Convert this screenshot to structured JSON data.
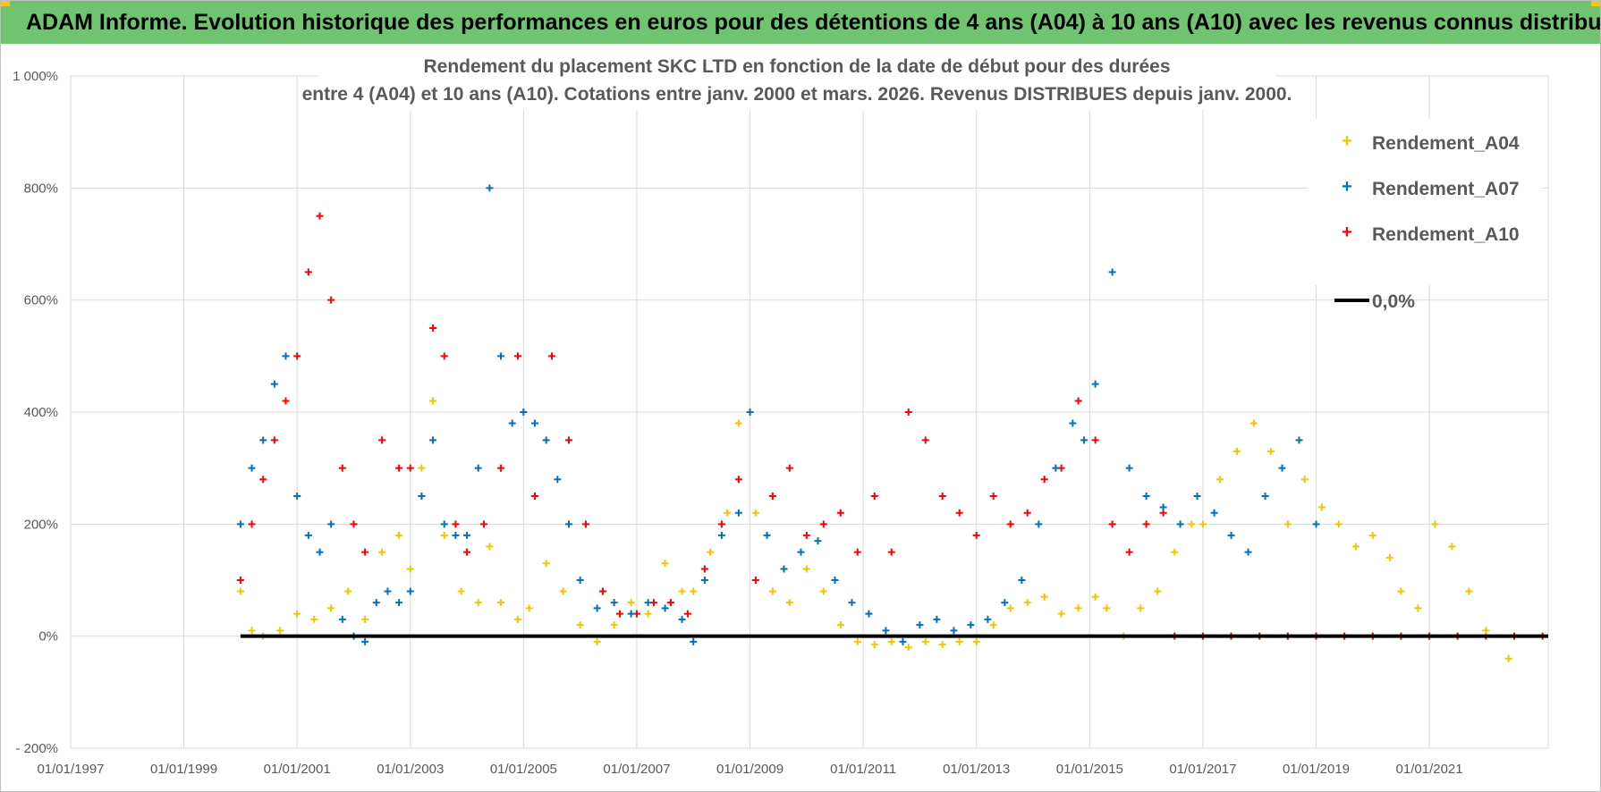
{
  "banner": {
    "title": "ADAM Informe. Evolution historique des performances en euros pour des détentions de 4 ans (A04) à 10 ans (A10) avec les revenus connus distribués"
  },
  "colors": {
    "banner_bg": "#70c46f",
    "a04": "#f5c400",
    "a07": "#0070c0",
    "a10": "#ff0000",
    "zero": "#000000",
    "grid": "#d9d9d9",
    "text": "#595959"
  },
  "chart_data": {
    "type": "scatter",
    "title_line1": "Rendement du placement SKC LTD en fonction de la date de début pour des durées",
    "title_line2": "entre 4 (A04) et 10 ans (A10).  Cotations entre janv. 2000 et mars. 2026.  Revenus DISTRIBUES depuis janv. 2000.",
    "xlim": [
      1997.0,
      2023.1
    ],
    "ylim": [
      -200,
      1000
    ],
    "x_ticks": [
      1997,
      1999,
      2001,
      2003,
      2005,
      2007,
      2009,
      2011,
      2013,
      2015,
      2017,
      2019,
      2021
    ],
    "x_tick_labels": [
      "01/01/1997",
      "01/01/1999",
      "01/01/2001",
      "01/01/2003",
      "01/01/2005",
      "01/01/2007",
      "01/01/2009",
      "01/01/2011",
      "01/01/2013",
      "01/01/2015",
      "01/01/2017",
      "01/01/2019",
      "01/01/2021"
    ],
    "y_ticks": [
      -200,
      0,
      200,
      400,
      600,
      800,
      1000
    ],
    "y_tick_labels": [
      "- 200%",
      "0%",
      "200%",
      "400%",
      "600%",
      "800%",
      "1 000%"
    ],
    "grid": true,
    "legend_position": "top-right",
    "legend": [
      "Rendement_A04",
      "Rendement_A07",
      "Rendement_A10",
      "0,0%"
    ],
    "series": [
      {
        "name": "Rendement_A04",
        "x": [
          2000.0,
          2000.2,
          2000.4,
          2000.7,
          2001.0,
          2001.3,
          2001.6,
          2001.9,
          2002.2,
          2002.5,
          2002.8,
          2003.0,
          2003.2,
          2003.4,
          2003.6,
          2003.9,
          2004.2,
          2004.4,
          2004.6,
          2004.9,
          2005.1,
          2005.4,
          2005.7,
          2006.0,
          2006.3,
          2006.6,
          2006.9,
          2007.2,
          2007.5,
          2007.8,
          2008.0,
          2008.3,
          2008.6,
          2008.8,
          2009.1,
          2009.4,
          2009.7,
          2010.0,
          2010.3,
          2010.6,
          2010.9,
          2011.2,
          2011.5,
          2011.8,
          2012.1,
          2012.4,
          2012.7,
          2013.0,
          2013.3,
          2013.6,
          2013.9,
          2014.2,
          2014.5,
          2014.8,
          2015.1,
          2015.3,
          2015.6,
          2015.9,
          2016.2,
          2016.5,
          2016.8,
          2017.0,
          2017.3,
          2017.6,
          2017.9,
          2018.2,
          2018.5,
          2018.8,
          2019.1,
          2019.4,
          2019.7,
          2020.0,
          2020.3,
          2020.5,
          2020.8,
          2021.1,
          2021.4,
          2021.7,
          2022.0,
          2022.4
        ],
        "y": [
          80,
          10,
          0,
          10,
          40,
          30,
          50,
          80,
          30,
          150,
          180,
          120,
          300,
          420,
          180,
          80,
          60,
          160,
          60,
          30,
          50,
          130,
          80,
          20,
          -10,
          20,
          60,
          40,
          130,
          80,
          80,
          150,
          220,
          380,
          220,
          80,
          60,
          120,
          80,
          20,
          -10,
          -15,
          -10,
          -20,
          -10,
          -15,
          -10,
          -10,
          20,
          50,
          60,
          70,
          40,
          50,
          70,
          50,
          0,
          50,
          80,
          150,
          200,
          200,
          280,
          330,
          380,
          330,
          200,
          280,
          230,
          200,
          160,
          180,
          140,
          80,
          50,
          200,
          160,
          80,
          10,
          -40
        ]
      },
      {
        "name": "Rendement_A07",
        "x": [
          2000.0,
          2000.2,
          2000.4,
          2000.6,
          2000.8,
          2001.0,
          2001.2,
          2001.4,
          2001.6,
          2001.8,
          2002.0,
          2002.2,
          2002.4,
          2002.6,
          2002.8,
          2003.0,
          2003.2,
          2003.4,
          2003.6,
          2003.8,
          2004.0,
          2004.2,
          2004.4,
          2004.6,
          2004.8,
          2005.0,
          2005.2,
          2005.4,
          2005.6,
          2005.8,
          2006.0,
          2006.3,
          2006.6,
          2006.9,
          2007.2,
          2007.5,
          2007.8,
          2008.0,
          2008.2,
          2008.5,
          2008.8,
          2009.0,
          2009.3,
          2009.6,
          2009.9,
          2010.2,
          2010.5,
          2010.8,
          2011.1,
          2011.4,
          2011.7,
          2012.0,
          2012.3,
          2012.6,
          2012.9,
          2013.2,
          2013.5,
          2013.8,
          2014.1,
          2014.4,
          2014.7,
          2014.9,
          2015.1,
          2015.4,
          2015.7,
          2016.0,
          2016.3,
          2016.6,
          2016.9,
          2017.2,
          2017.5,
          2017.8,
          2018.1,
          2018.4,
          2018.7,
          2019.0
        ],
        "y": [
          200,
          300,
          350,
          450,
          500,
          250,
          180,
          150,
          200,
          30,
          0,
          -10,
          60,
          80,
          60,
          80,
          250,
          350,
          200,
          180,
          180,
          300,
          800,
          500,
          380,
          400,
          380,
          350,
          280,
          200,
          100,
          50,
          60,
          40,
          60,
          50,
          30,
          -10,
          100,
          180,
          220,
          400,
          180,
          120,
          150,
          170,
          100,
          60,
          40,
          10,
          -10,
          20,
          30,
          10,
          20,
          30,
          60,
          100,
          200,
          300,
          380,
          350,
          450,
          650,
          300,
          250,
          230,
          200,
          250,
          220,
          180,
          150,
          250,
          300,
          350,
          200
        ]
      },
      {
        "name": "Rendement_A10",
        "x": [
          2000.0,
          2000.2,
          2000.4,
          2000.6,
          2000.8,
          2001.0,
          2001.2,
          2001.4,
          2001.6,
          2001.8,
          2002.0,
          2002.2,
          2002.5,
          2002.8,
          2003.0,
          2003.2,
          2003.4,
          2003.6,
          2003.8,
          2004.0,
          2004.3,
          2004.6,
          2004.9,
          2005.2,
          2005.5,
          2005.8,
          2006.1,
          2006.4,
          2006.7,
          2007.0,
          2007.3,
          2007.6,
          2007.9,
          2008.2,
          2008.5,
          2008.8,
          2009.1,
          2009.4,
          2009.7,
          2010.0,
          2010.3,
          2010.6,
          2010.9,
          2011.2,
          2011.5,
          2011.8,
          2012.1,
          2012.4,
          2012.7,
          2013.0,
          2013.3,
          2013.6,
          2013.9,
          2014.2,
          2014.5,
          2014.8,
          2015.1,
          2015.4,
          2015.7,
          2016.0,
          2016.3,
          2016.5,
          2017.0,
          2017.5,
          2018.0,
          2018.5,
          2019.0,
          2019.5,
          2020.0,
          2020.5,
          2021.0,
          2021.5,
          2022.0,
          2022.5,
          2023.0
        ],
        "y": [
          100,
          200,
          280,
          350,
          420,
          500,
          650,
          750,
          600,
          300,
          200,
          150,
          350,
          300,
          300,
          250,
          550,
          500,
          200,
          150,
          200,
          300,
          500,
          250,
          500,
          350,
          200,
          80,
          40,
          40,
          60,
          60,
          40,
          120,
          200,
          280,
          100,
          250,
          300,
          180,
          200,
          220,
          150,
          250,
          150,
          400,
          350,
          250,
          220,
          180,
          250,
          200,
          220,
          280,
          300,
          420,
          350,
          200,
          150,
          200,
          220,
          0,
          0,
          0,
          0,
          0,
          0,
          0,
          0,
          0,
          0,
          0,
          0,
          0,
          0
        ]
      },
      {
        "name": "0,0%",
        "x": [
          2000.0,
          2023.1
        ],
        "y": [
          0,
          0
        ]
      }
    ]
  }
}
